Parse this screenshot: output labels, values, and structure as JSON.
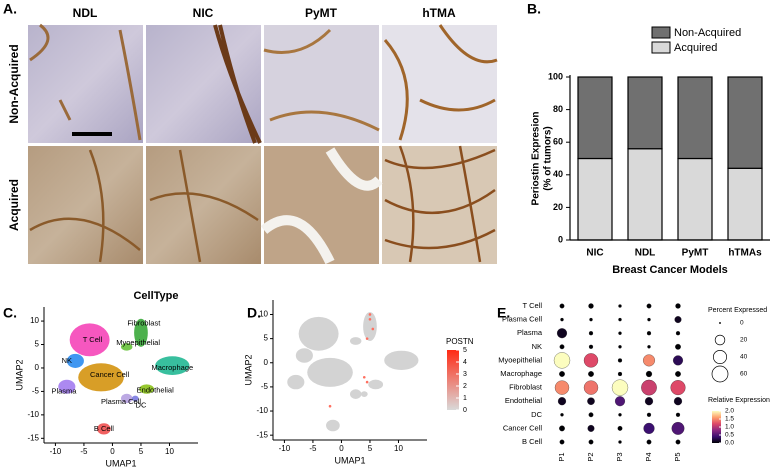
{
  "panel_labels": [
    "A.",
    "B.",
    "C.",
    "D.",
    "E."
  ],
  "panel_a": {
    "columns": [
      "NDL",
      "NIC",
      "PyMT",
      "hTMA"
    ],
    "rows": [
      "Non-Acquired",
      "Acquired"
    ]
  },
  "chart_data": [
    {
      "type": "bar",
      "stacked": true,
      "categories": [
        "NIC",
        "NDL",
        "PyMT",
        "hTMAs"
      ],
      "series": [
        {
          "name": "Acquired",
          "color": "#d9d9d9",
          "values": [
            50,
            56,
            50,
            44
          ]
        },
        {
          "name": "Non-Acquired",
          "color": "#707070",
          "values": [
            50,
            44,
            50,
            56
          ]
        }
      ],
      "ylabel": [
        "Periostin Expresion",
        "(% of tumors)"
      ],
      "xlabel": "Breast Cancer Models",
      "ylim": [
        0,
        100
      ],
      "yticks": [
        0,
        20,
        40,
        60,
        80,
        100
      ],
      "legend": "top"
    },
    {
      "type": "umap",
      "title": "CellType",
      "xlabel": "UMAP1",
      "ylabel": "UMAP2",
      "xlim": [
        -12,
        15
      ],
      "ylim": [
        -16,
        13
      ],
      "xticks": [
        -10,
        -5,
        0,
        5,
        10
      ],
      "yticks": [
        -15,
        -10,
        -5,
        0,
        5,
        10
      ],
      "clusters": [
        {
          "name": "Fibroblast",
          "color": "#3aa83a"
        },
        {
          "name": "T Cell",
          "color": "#f545b8"
        },
        {
          "name": "Myoepithelial",
          "color": "#66c23a"
        },
        {
          "name": "NK",
          "color": "#2b8cf0"
        },
        {
          "name": "Macrophage",
          "color": "#22b894"
        },
        {
          "name": "Cancer Cell",
          "color": "#d4930f"
        },
        {
          "name": "Plasma",
          "color": "#a37cf0"
        },
        {
          "name": "Endothelial",
          "color": "#8cc21a"
        },
        {
          "name": "Plasma Cell",
          "color": "#b5a0e0"
        },
        {
          "name": "DC",
          "color": "#7a7ae0"
        },
        {
          "name": "B Cell",
          "color": "#f05050"
        }
      ]
    },
    {
      "type": "umap",
      "xlabel": "UMAP1",
      "ylabel": "UMAP2",
      "xlim": [
        -12,
        15
      ],
      "ylim": [
        -16,
        13
      ],
      "xticks": [
        -10,
        -5,
        0,
        5,
        10
      ],
      "yticks": [
        -15,
        -10,
        -5,
        0,
        5,
        10
      ],
      "colorbar": {
        "title": "POSTN",
        "ticks": [
          0,
          1,
          2,
          3,
          4,
          5
        ],
        "clim": [
          0,
          5
        ],
        "colors": [
          "#d9d9d9",
          "#ff2a14"
        ]
      }
    },
    {
      "type": "dot",
      "categories": [
        "T Cell",
        "Plasma Cell",
        "Plasma",
        "NK",
        "Myoepithelial",
        "Macrophage",
        "Fibroblast",
        "Endothelial",
        "DC",
        "Cancer Cell",
        "B Cell"
      ],
      "columns": [
        "P1",
        "P2",
        "P3",
        "P4",
        "P5"
      ],
      "percent": [
        [
          3,
          4,
          1,
          3,
          4
        ],
        [
          1,
          1,
          1,
          1,
          8
        ],
        [
          20,
          2,
          1,
          2,
          2
        ],
        [
          3,
          2,
          1,
          1,
          5
        ],
        [
          60,
          45,
          2,
          30,
          20
        ],
        [
          5,
          5,
          2,
          6,
          5
        ],
        [
          45,
          45,
          60,
          55,
          50
        ],
        [
          12,
          10,
          20,
          12,
          12
        ],
        [
          1,
          3,
          1,
          2,
          2
        ],
        [
          5,
          8,
          3,
          25,
          35
        ],
        [
          3,
          3,
          1,
          3,
          3
        ]
      ],
      "expression": [
        [
          0,
          0,
          0,
          0,
          0
        ],
        [
          0,
          0,
          0,
          0,
          0.1
        ],
        [
          0.1,
          0,
          0,
          0,
          0
        ],
        [
          0,
          0,
          0,
          0,
          0
        ],
        [
          2.0,
          1.2,
          0,
          1.5,
          0.3
        ],
        [
          0,
          0,
          0,
          0,
          0
        ],
        [
          1.5,
          1.4,
          2.0,
          1.1,
          1.2
        ],
        [
          0.1,
          0.1,
          0.5,
          0.1,
          0.1
        ],
        [
          0,
          0,
          0,
          0,
          0
        ],
        [
          0,
          0.1,
          0,
          0.4,
          0.5
        ],
        [
          0,
          0,
          0,
          0,
          0
        ]
      ],
      "size_legend": {
        "title": "Percent Expressed",
        "ticks": [
          0,
          20,
          40,
          60
        ],
        "size_lim": [
          0,
          60
        ]
      },
      "color_legend": {
        "title": "Relative Expression",
        "ticks": [
          {
            "value": 0,
            "label": "0.0"
          },
          0.5,
          {
            "value": 1,
            "label": "1.0"
          },
          1.5,
          {
            "value": 2,
            "label": "2.0"
          }
        ],
        "clim": [
          0,
          2
        ],
        "colors": [
          "#000004",
          "#3b0f70",
          "#8c2981",
          "#de4968",
          "#fe9f6d",
          "#fcfdbf"
        ]
      }
    }
  ]
}
